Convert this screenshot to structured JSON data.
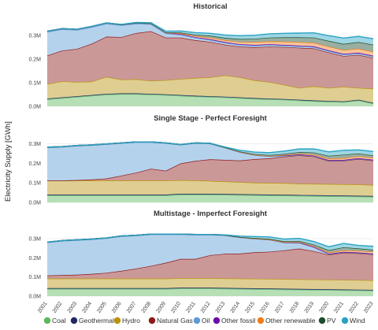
{
  "chart_data": {
    "type": "area",
    "ylabel": "Electricity Supply [GWh]",
    "stack_order": [
      "Coal",
      "Geothermal",
      "Hydro",
      "Natural Gas",
      "Oil",
      "Other fossil",
      "Other renewable",
      "PV",
      "Wind"
    ],
    "colors": {
      "Coal": "#5cb85c",
      "Geothermal": "#1f2a63",
      "Hydro": "#b8920c",
      "Natural Gas": "#8b1a1a",
      "Oil": "#5b9bd5",
      "Other fossil": "#6a0dad",
      "Other renewable": "#f07d1a",
      "PV": "#1b4d2e",
      "Wind": "#29a3c4"
    },
    "x": [
      "2001",
      "2002",
      "2003",
      "2004",
      "2005",
      "2006",
      "2007",
      "2008",
      "2009",
      "2010",
      "2011",
      "2012",
      "2013",
      "2014",
      "2015",
      "2016",
      "2017",
      "2018",
      "2019",
      "2020",
      "2021",
      "2022",
      "2023"
    ],
    "yticks": [
      "0.0M",
      "0.1M",
      "0.2M",
      "0.3M"
    ],
    "ylim": [
      0,
      0.37
    ],
    "panels": [
      {
        "title": "Historical",
        "series": [
          {
            "name": "Coal",
            "values": [
              0.03,
              0.035,
              0.04,
              0.045,
              0.05,
              0.052,
              0.052,
              0.05,
              0.048,
              0.045,
              0.042,
              0.04,
              0.038,
              0.035,
              0.032,
              0.03,
              0.028,
              0.025,
              0.022,
              0.02,
              0.018,
              0.025,
              0.012
            ]
          },
          {
            "name": "Geothermal",
            "values": [
              0.003,
              0.003,
              0.003,
              0.003,
              0.003,
              0.003,
              0.003,
              0.003,
              0.003,
              0.003,
              0.003,
              0.003,
              0.003,
              0.003,
              0.003,
              0.003,
              0.003,
              0.003,
              0.003,
              0.003,
              0.003,
              0.003,
              0.003
            ]
          },
          {
            "name": "Hydro",
            "values": [
              0.062,
              0.068,
              0.06,
              0.057,
              0.072,
              0.058,
              0.06,
              0.055,
              0.06,
              0.068,
              0.075,
              0.08,
              0.09,
              0.085,
              0.075,
              0.07,
              0.06,
              0.05,
              0.06,
              0.055,
              0.062,
              0.05,
              0.06
            ]
          },
          {
            "name": "Natural Gas",
            "values": [
              0.12,
              0.13,
              0.14,
              0.16,
              0.17,
              0.18,
              0.195,
              0.21,
              0.18,
              0.175,
              0.16,
              0.15,
              0.13,
              0.13,
              0.14,
              0.15,
              0.16,
              0.17,
              0.16,
              0.15,
              0.13,
              0.14,
              0.13
            ]
          },
          {
            "name": "Oil",
            "values": [
              0.1,
              0.09,
              0.08,
              0.07,
              0.055,
              0.05,
              0.04,
              0.03,
              0.018,
              0.012,
              0.01,
              0.008,
              0.008,
              0.007,
              0.007,
              0.007,
              0.006,
              0.006,
              0.006,
              0.006,
              0.006,
              0.006,
              0.006
            ]
          },
          {
            "name": "Other fossil",
            "values": [
              0.003,
              0.003,
              0.003,
              0.003,
              0.003,
              0.003,
              0.003,
              0.003,
              0.003,
              0.003,
              0.003,
              0.003,
              0.003,
              0.003,
              0.003,
              0.003,
              0.003,
              0.003,
              0.003,
              0.003,
              0.003,
              0.003,
              0.003
            ]
          },
          {
            "name": "Other renewable",
            "values": [
              0.0,
              0.0,
              0.0,
              0.0,
              0.0,
              0.0,
              0.0,
              0.0,
              0.0,
              0.003,
              0.005,
              0.007,
              0.008,
              0.01,
              0.012,
              0.012,
              0.014,
              0.015,
              0.015,
              0.016,
              0.016,
              0.017,
              0.017
            ]
          },
          {
            "name": "PV",
            "values": [
              0.0,
              0.0,
              0.0,
              0.0,
              0.0,
              0.0,
              0.0,
              0.0,
              0.001,
              0.003,
              0.005,
              0.008,
              0.01,
              0.012,
              0.014,
              0.016,
              0.018,
              0.02,
              0.022,
              0.024,
              0.026,
              0.028,
              0.03
            ]
          },
          {
            "name": "Wind",
            "values": [
              0.0,
              0.0,
              0.0,
              0.0,
              0.0,
              0.001,
              0.002,
              0.003,
              0.005,
              0.007,
              0.009,
              0.01,
              0.012,
              0.014,
              0.015,
              0.016,
              0.017,
              0.018,
              0.02,
              0.022,
              0.025,
              0.024,
              0.025
            ]
          }
        ]
      },
      {
        "title": "Single Stage - Perfect Foresight",
        "series": [
          {
            "name": "Coal",
            "values": [
              0.036,
              0.036,
              0.036,
              0.036,
              0.036,
              0.036,
              0.036,
              0.036,
              0.036,
              0.04,
              0.04,
              0.04,
              0.039,
              0.038,
              0.037,
              0.036,
              0.035,
              0.034,
              0.033,
              0.032,
              0.031,
              0.03,
              0.029
            ]
          },
          {
            "name": "Geothermal",
            "values": [
              0.004,
              0.004,
              0.004,
              0.004,
              0.004,
              0.004,
              0.004,
              0.004,
              0.004,
              0.004,
              0.004,
              0.004,
              0.004,
              0.004,
              0.004,
              0.004,
              0.004,
              0.004,
              0.004,
              0.004,
              0.004,
              0.004,
              0.004
            ]
          },
          {
            "name": "Hydro",
            "values": [
              0.072,
              0.072,
              0.072,
              0.072,
              0.072,
              0.072,
              0.072,
              0.072,
              0.072,
              0.07,
              0.068,
              0.066,
              0.064,
              0.062,
              0.06,
              0.06,
              0.06,
              0.058,
              0.058,
              0.058,
              0.058,
              0.058,
              0.056
            ]
          },
          {
            "name": "Natural Gas",
            "values": [
              0.0,
              0.0,
              0.002,
              0.005,
              0.01,
              0.025,
              0.04,
              0.06,
              0.05,
              0.085,
              0.1,
              0.11,
              0.11,
              0.11,
              0.12,
              0.125,
              0.135,
              0.145,
              0.14,
              0.118,
              0.12,
              0.13,
              0.125
            ]
          },
          {
            "name": "Oil",
            "values": [
              0.168,
              0.171,
              0.175,
              0.175,
              0.175,
              0.165,
              0.155,
              0.135,
              0.14,
              0.095,
              0.09,
              0.08,
              0.062,
              0.042,
              0.02,
              0.01,
              0.004,
              0.002,
              0.002,
              0.002,
              0.002,
              0.002,
              0.002
            ]
          },
          {
            "name": "Other fossil",
            "values": [
              0.002,
              0.002,
              0.002,
              0.002,
              0.002,
              0.002,
              0.002,
              0.002,
              0.002,
              0.002,
              0.002,
              0.002,
              0.002,
              0.002,
              0.002,
              0.002,
              0.002,
              0.002,
              0.002,
              0.002,
              0.002,
              0.002,
              0.002
            ]
          },
          {
            "name": "Other renewable",
            "values": [
              0.0,
              0.0,
              0.0,
              0.0,
              0.0,
              0.0,
              0.0,
              0.0,
              0.0,
              0.0,
              0.0,
              0.0,
              0.0,
              0.0,
              0.0,
              0.0,
              0.002,
              0.004,
              0.006,
              0.008,
              0.009,
              0.01,
              0.01
            ]
          },
          {
            "name": "PV",
            "values": [
              0.0,
              0.0,
              0.0,
              0.0,
              0.0,
              0.0,
              0.0,
              0.0,
              0.0,
              0.0,
              0.0,
              0.0,
              0.0,
              0.002,
              0.004,
              0.005,
              0.006,
              0.008,
              0.01,
              0.014,
              0.018,
              0.014,
              0.012
            ]
          },
          {
            "name": "Wind",
            "values": [
              0.0,
              0.0,
              0.0,
              0.0,
              0.0,
              0.0,
              0.0,
              0.0,
              0.0,
              0.0,
              0.0,
              0.0,
              0.002,
              0.006,
              0.01,
              0.012,
              0.014,
              0.016,
              0.018,
              0.02,
              0.022,
              0.018,
              0.02
            ]
          }
        ]
      },
      {
        "title": "Multistage - Imperfect Foresight",
        "series": [
          {
            "name": "Coal",
            "values": [
              0.038,
              0.038,
              0.038,
              0.038,
              0.038,
              0.038,
              0.038,
              0.038,
              0.038,
              0.04,
              0.04,
              0.04,
              0.039,
              0.038,
              0.037,
              0.036,
              0.035,
              0.034,
              0.033,
              0.032,
              0.031,
              0.03,
              0.029
            ]
          },
          {
            "name": "Geothermal",
            "values": [
              0.004,
              0.004,
              0.004,
              0.004,
              0.004,
              0.004,
              0.004,
              0.004,
              0.004,
              0.004,
              0.004,
              0.004,
              0.004,
              0.004,
              0.004,
              0.004,
              0.004,
              0.004,
              0.004,
              0.004,
              0.004,
              0.004,
              0.004
            ]
          },
          {
            "name": "Hydro",
            "values": [
              0.05,
              0.05,
              0.05,
              0.05,
              0.05,
              0.05,
              0.05,
              0.05,
              0.05,
              0.05,
              0.05,
              0.05,
              0.05,
              0.05,
              0.05,
              0.05,
              0.05,
              0.05,
              0.05,
              0.05,
              0.05,
              0.05,
              0.05
            ]
          },
          {
            "name": "Natural Gas",
            "values": [
              0.016,
              0.018,
              0.02,
              0.024,
              0.03,
              0.04,
              0.052,
              0.066,
              0.082,
              0.1,
              0.1,
              0.12,
              0.128,
              0.13,
              0.138,
              0.142,
              0.15,
              0.16,
              0.148,
              0.13,
              0.142,
              0.14,
              0.135
            ]
          },
          {
            "name": "Oil",
            "values": [
              0.172,
              0.178,
              0.18,
              0.18,
              0.18,
              0.18,
              0.172,
              0.164,
              0.148,
              0.128,
              0.126,
              0.106,
              0.096,
              0.084,
              0.07,
              0.062,
              0.04,
              0.03,
              0.02,
              0.004,
              0.002,
              0.002,
              0.002
            ]
          },
          {
            "name": "Other fossil",
            "values": [
              0.002,
              0.002,
              0.002,
              0.002,
              0.002,
              0.002,
              0.002,
              0.002,
              0.002,
              0.002,
              0.002,
              0.002,
              0.002,
              0.002,
              0.002,
              0.002,
              0.002,
              0.002,
              0.002,
              0.002,
              0.002,
              0.002,
              0.002
            ]
          },
          {
            "name": "Other renewable",
            "values": [
              0.0,
              0.0,
              0.0,
              0.0,
              0.0,
              0.0,
              0.0,
              0.0,
              0.0,
              0.0,
              0.0,
              0.0,
              0.0,
              0.0,
              0.0,
              0.0,
              0.001,
              0.002,
              0.004,
              0.006,
              0.008,
              0.009,
              0.01
            ]
          },
          {
            "name": "PV",
            "values": [
              0.0,
              0.0,
              0.0,
              0.0,
              0.0,
              0.0,
              0.0,
              0.0,
              0.0,
              0.0,
              0.0,
              0.0,
              0.0,
              0.001,
              0.002,
              0.003,
              0.004,
              0.006,
              0.008,
              0.012,
              0.016,
              0.012,
              0.01
            ]
          },
          {
            "name": "Wind",
            "values": [
              0.0,
              0.0,
              0.0,
              0.0,
              0.0,
              0.0,
              0.0,
              0.0,
              0.0,
              0.0,
              0.0,
              0.0,
              0.001,
              0.004,
              0.008,
              0.01,
              0.012,
              0.014,
              0.016,
              0.018,
              0.02,
              0.016,
              0.018
            ]
          }
        ]
      }
    ],
    "legend": [
      "Coal",
      "Geothermal",
      "Hydro",
      "Natural Gas",
      "Oil",
      "Other fossil",
      "Other renewable",
      "PV",
      "Wind"
    ],
    "legend_position": "bottom"
  }
}
